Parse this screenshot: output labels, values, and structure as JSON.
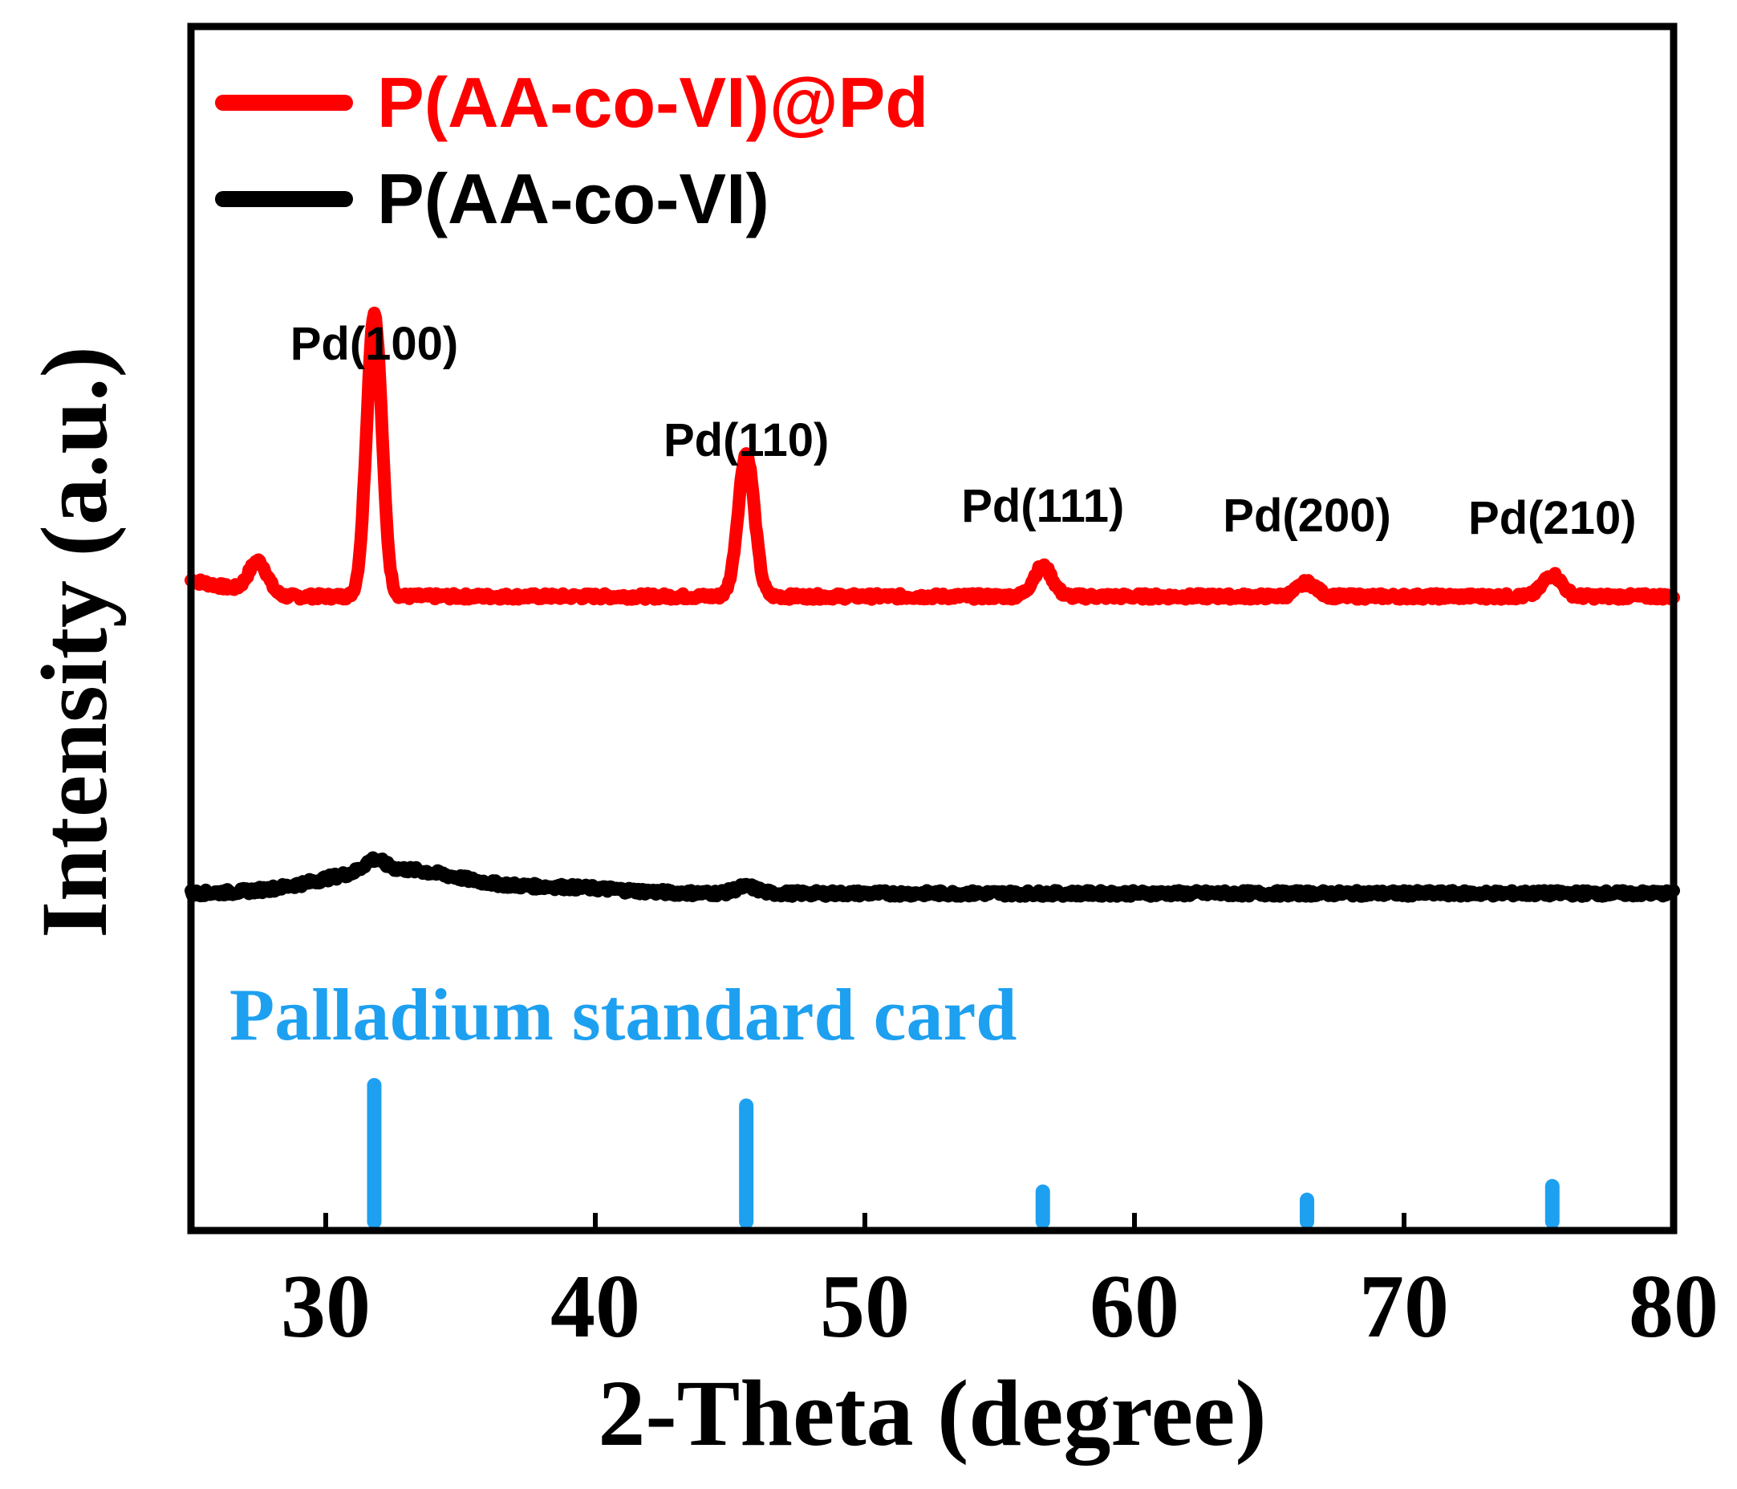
{
  "chart_data": {
    "type": "line",
    "title": "",
    "xlabel": "2-Theta (degree)",
    "ylabel": "Intensity (a.u.)",
    "xlim": [
      25,
      80
    ],
    "xticks": [
      "30",
      "40",
      "50",
      "60",
      "70",
      "80"
    ],
    "xtick_values": [
      30,
      40,
      50,
      60,
      70,
      80
    ],
    "legend_position": "top-left",
    "colors": {
      "pd_series": "#ff0000",
      "polymer_series": "#000000",
      "standard_card": "#1ea0f0"
    },
    "series": [
      {
        "name": "P(AA-co-VI)@Pd",
        "color": "#ff0000",
        "baseline": 1.1,
        "peaks": [
          {
            "x": 27.5,
            "height": 0.12,
            "width": 0.35
          },
          {
            "x": 31.8,
            "height": 1.05,
            "width": 0.28
          },
          {
            "x": 45.6,
            "height": 0.53,
            "width": 0.3
          },
          {
            "x": 56.6,
            "height": 0.11,
            "width": 0.35
          },
          {
            "x": 66.4,
            "height": 0.05,
            "width": 0.35
          },
          {
            "x": 75.5,
            "height": 0.08,
            "width": 0.35
          }
        ]
      },
      {
        "name": "P(AA-co-VI)",
        "color": "#000000",
        "baseline": 0.0,
        "peaks": [
          {
            "x": 32.5,
            "height": 0.09,
            "width": 2.5
          },
          {
            "x": 31.8,
            "height": 0.04,
            "width": 0.35
          },
          {
            "x": 39.0,
            "height": 0.02,
            "width": 2.0
          },
          {
            "x": 45.6,
            "height": 0.025,
            "width": 0.4
          }
        ]
      }
    ],
    "annotations": [
      {
        "text": "Pd(100)",
        "x": 31.8
      },
      {
        "text": "Pd(110)",
        "x": 45.6
      },
      {
        "text": "Pd(111)",
        "x": 56.6
      },
      {
        "text": "Pd(200)",
        "x": 66.4
      },
      {
        "text": "Pd(210)",
        "x": 75.5
      }
    ],
    "standard_card": {
      "label": "Palladium standard card",
      "lines": [
        {
          "x": 31.8,
          "intensity": 100
        },
        {
          "x": 45.6,
          "intensity": 85
        },
        {
          "x": 56.6,
          "intensity": 22
        },
        {
          "x": 66.4,
          "intensity": 16
        },
        {
          "x": 75.5,
          "intensity": 26
        }
      ]
    }
  }
}
